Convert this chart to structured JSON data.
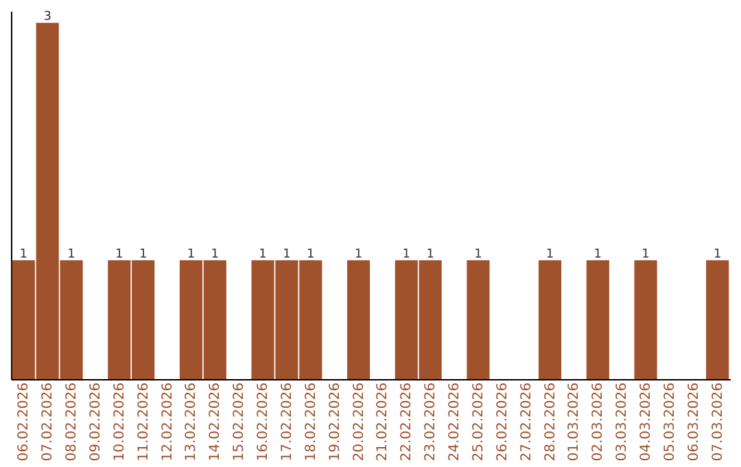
{
  "chart_data": {
    "type": "bar",
    "categories": [
      "06.02.2026",
      "07.02.2026",
      "08.02.2026",
      "09.02.2026",
      "10.02.2026",
      "11.02.2026",
      "12.02.2026",
      "13.02.2026",
      "14.02.2026",
      "15.02.2026",
      "16.02.2026",
      "17.02.2026",
      "18.02.2026",
      "19.02.2026",
      "20.02.2026",
      "21.02.2026",
      "22.02.2026",
      "23.02.2026",
      "24.02.2026",
      "25.02.2026",
      "26.02.2026",
      "27.02.2026",
      "28.02.2026",
      "01.03.2026",
      "02.03.2026",
      "03.03.2026",
      "04.03.2026",
      "05.03.2026",
      "06.03.2026",
      "07.03.2026"
    ],
    "values": [
      1,
      3,
      1,
      0,
      1,
      1,
      0,
      1,
      1,
      0,
      1,
      1,
      1,
      0,
      1,
      0,
      1,
      1,
      0,
      1,
      0,
      0,
      1,
      0,
      1,
      0,
      1,
      0,
      0,
      1
    ],
    "value_labels": [
      "1",
      "3",
      "1",
      null,
      "1",
      "1",
      null,
      "1",
      "1",
      null,
      "1",
      "1",
      "1",
      null,
      "1",
      null,
      "1",
      "1",
      null,
      "1",
      null,
      null,
      "1",
      null,
      "1",
      null,
      "1",
      null,
      null,
      "1"
    ],
    "color": "#a0522d",
    "ylim": [
      0,
      3.1
    ],
    "tick_labels": "x",
    "grid": false
  }
}
